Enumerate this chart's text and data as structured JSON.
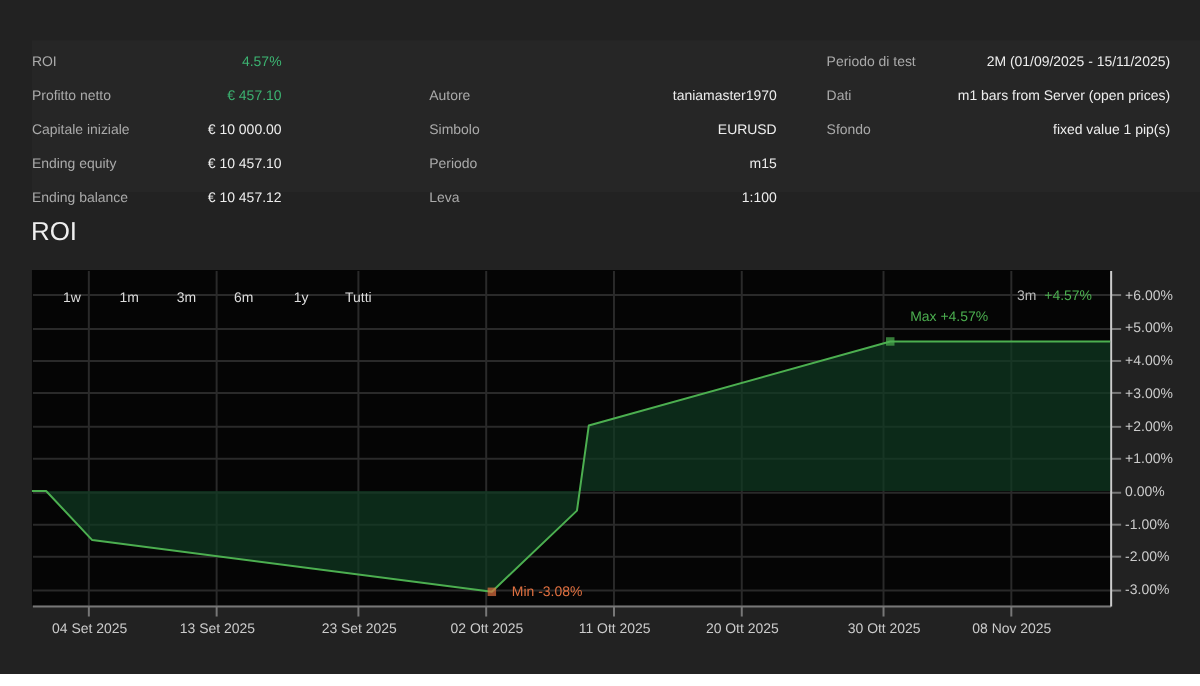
{
  "chart_data": {
    "type": "area",
    "title": "ROI",
    "x": [
      "2025-08-31",
      "2025-09-01",
      "2025-09-04T06:00",
      "2025-10-02T10:00",
      "2025-10-08T10:00",
      "2025-10-09T06:00",
      "2025-10-30T12:00",
      "2025-11-15"
    ],
    "series": [
      {
        "color": "#4caf50",
        "values": [
          0,
          0,
          -1.5,
          -3.08,
          -0.6,
          2.0,
          4.57,
          4.57
        ]
      }
    ],
    "xlim": [
      "2025-08-31",
      "2025-11-15"
    ],
    "xticks": [
      {
        "value": "2025-09-04",
        "label": "04 Set 2025"
      },
      {
        "value": "2025-09-13",
        "label": "13 Set 2025"
      },
      {
        "value": "2025-09-23",
        "label": "23 Set 2025"
      },
      {
        "value": "2025-10-02",
        "label": "02 Ott 2025"
      },
      {
        "value": "2025-10-11",
        "label": "11 Ott 2025"
      },
      {
        "value": "2025-10-20",
        "label": "20 Ott 2025"
      },
      {
        "value": "2025-10-30",
        "label": "30 Ott 2025"
      },
      {
        "value": "2025-11-08",
        "label": "08 Nov 2025"
      }
    ],
    "ylim": [
      -3.5,
      6.75
    ],
    "yticks": [
      {
        "value": -3,
        "label": "-3.00%"
      },
      {
        "value": -2,
        "label": "-2.00%"
      },
      {
        "value": -1,
        "label": "-1.00%"
      },
      {
        "value": 0,
        "label": "0.00%"
      },
      {
        "value": 1,
        "label": "+1.00%"
      },
      {
        "value": 2,
        "label": "+2.00%"
      },
      {
        "value": 3,
        "label": "+3.00%"
      },
      {
        "value": 4,
        "label": "+4.00%"
      },
      {
        "value": 5,
        "label": "+5.00%"
      },
      {
        "value": 6,
        "label": "+6.00%"
      }
    ],
    "grid": true,
    "annotations": [
      "ROI",
      "4.57%",
      "Profitto netto",
      "€ 457.10",
      "Capitale iniziale",
      "€ 10 000.00",
      "Ending equity",
      "€ 10 457.10",
      "Ending balance",
      "€ 10 457.12",
      "Autore",
      "taniamaster1970",
      "Simbolo",
      "EURUSD",
      "Periodo",
      "m15",
      "Leva",
      "1:100",
      "Periodo di test",
      "2M (01/09/2025 - 15/11/2025)",
      "Dati",
      "m1 bars from Server (open prices)",
      "Sfondo",
      "fixed value 1 pip(s)",
      "1w",
      "1m",
      "3m",
      "6m",
      "1y",
      "Tutti",
      "3m",
      "+4.57%",
      {
        "text": "Min -3.08%",
        "x": "2025-10-02T10:00",
        "y": -3.08
      },
      {
        "text": "Max +4.57%",
        "x": "2025-10-30T12:00",
        "y": 4.57
      }
    ]
  }
}
